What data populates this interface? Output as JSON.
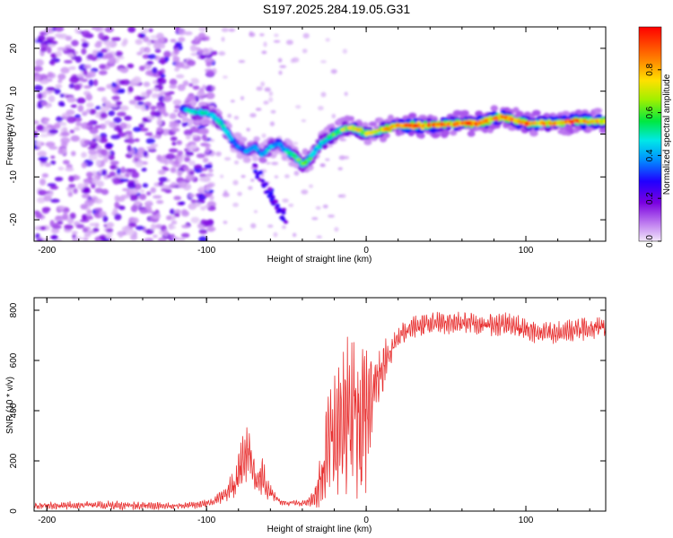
{
  "chart_data": [
    {
      "type": "heatmap",
      "title": "S197.2025.284.19.05.G31",
      "xlabel": "Height of straight line (km)",
      "ylabel": "Frequency (Hz)",
      "xlim": [
        -208,
        150
      ],
      "ylim": [
        -25,
        25
      ],
      "x_ticks": [
        -200,
        -100,
        0,
        100
      ],
      "x_tick_labels": [
        "-200",
        "-100",
        "0",
        "100"
      ],
      "y_ticks": [
        -20,
        -10,
        0,
        10,
        20
      ],
      "y_tick_labels": [
        "-20",
        "-10",
        "0",
        "10",
        "20"
      ],
      "colorbar": {
        "label": "Normalized spectral amplitude",
        "range": [
          0,
          1
        ],
        "ticks": [
          0.0,
          0.2,
          0.4,
          0.6,
          0.8
        ],
        "tick_labels": [
          "0.0",
          "0.2",
          "0.4",
          "0.6",
          "0.8"
        ],
        "colormap": "rainbow (low = light violet, high = red)"
      },
      "ridge": {
        "x": [
          -115,
          -108,
          -100,
          -95,
          -90,
          -85,
          -80,
          -75,
          -70,
          -65,
          -60,
          -55,
          -50,
          -45,
          -40,
          -36,
          -32,
          -28,
          -24,
          -20,
          -15,
          -10,
          -5,
          0,
          5,
          10,
          15,
          20,
          30,
          40,
          50,
          60,
          70,
          75,
          80,
          85,
          90,
          95,
          100,
          110,
          120,
          130,
          140,
          150
        ],
        "freq": [
          6,
          5,
          5,
          4,
          2,
          -1,
          -3,
          -4,
          -3,
          -5,
          -3,
          -2,
          -4,
          -5,
          -7,
          -6,
          -4,
          -2,
          -1,
          0,
          1,
          1.5,
          1,
          0,
          0.5,
          1,
          1.5,
          2,
          2,
          2,
          2.2,
          2.5,
          2.5,
          3,
          3.5,
          4,
          3.5,
          3,
          2.5,
          2.5,
          2.5,
          3,
          3,
          3
        ],
        "amplitude": [
          0.35,
          0.5,
          0.55,
          0.45,
          0.5,
          0.4,
          0.35,
          0.4,
          0.35,
          0.4,
          0.45,
          0.35,
          0.45,
          0.55,
          0.6,
          0.55,
          0.5,
          0.5,
          0.55,
          0.6,
          0.65,
          0.7,
          0.7,
          0.75,
          0.72,
          0.8,
          0.85,
          0.92,
          1.0,
          0.9,
          0.85,
          0.95,
          0.92,
          0.9,
          0.85,
          0.95,
          0.9,
          0.85,
          0.9,
          0.85,
          0.85,
          0.9,
          0.88,
          0.85
        ]
      },
      "noise_region_x": [
        -208,
        -105
      ]
    },
    {
      "type": "line",
      "title": "",
      "xlabel": "Height of straight line (km)",
      "ylabel": "SNR (10 * v/v)",
      "xlim": [
        -208,
        150
      ],
      "ylim": [
        0,
        850
      ],
      "x_ticks": [
        -200,
        -100,
        0,
        100
      ],
      "x_tick_labels": [
        "-200",
        "-100",
        "0",
        "100"
      ],
      "y_ticks": [
        0,
        200,
        400,
        600,
        800
      ],
      "y_tick_labels": [
        "0",
        "200",
        "400",
        "600",
        "800"
      ],
      "color": "#e83030",
      "envelope": {
        "x": [
          -208,
          -180,
          -150,
          -120,
          -105,
          -95,
          -88,
          -82,
          -78,
          -74,
          -71,
          -68,
          -65,
          -62,
          -58,
          -54,
          -50,
          -45,
          -40,
          -35,
          -32,
          -28,
          -25,
          -22,
          -19,
          -16,
          -13,
          -10,
          -7,
          -4,
          -1,
          2,
          5,
          8,
          11,
          14,
          18,
          22,
          26,
          30,
          40,
          50,
          60,
          70,
          80,
          90,
          100,
          110,
          120,
          130,
          140,
          150
        ],
        "base": [
          20,
          25,
          22,
          20,
          25,
          40,
          70,
          110,
          180,
          260,
          170,
          110,
          150,
          90,
          60,
          40,
          30,
          35,
          30,
          40,
          60,
          150,
          230,
          320,
          300,
          400,
          340,
          380,
          420,
          330,
          360,
          410,
          500,
          540,
          580,
          620,
          670,
          700,
          720,
          730,
          745,
          750,
          750,
          745,
          740,
          745,
          720,
          710,
          710,
          720,
          730,
          740
        ],
        "amplitude": [
          12,
          15,
          15,
          12,
          12,
          15,
          30,
          60,
          90,
          120,
          80,
          60,
          70,
          40,
          20,
          12,
          10,
          10,
          10,
          20,
          40,
          120,
          160,
          200,
          230,
          260,
          300,
          330,
          280,
          320,
          300,
          200,
          150,
          120,
          90,
          70,
          50,
          40,
          40,
          40,
          40,
          40,
          40,
          40,
          40,
          40,
          40,
          40,
          40,
          40,
          40,
          40
        ]
      }
    }
  ]
}
